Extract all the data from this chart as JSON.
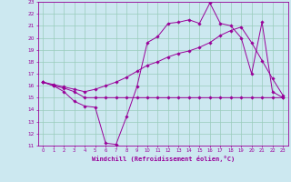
{
  "title": "",
  "xlabel": "Windchill (Refroidissement éolien,°C)",
  "bg_color": "#cce8f0",
  "grid_color": "#99ccbb",
  "line_color": "#990099",
  "xlim": [
    -0.5,
    23.5
  ],
  "ylim": [
    11,
    23
  ],
  "yticks": [
    11,
    12,
    13,
    14,
    15,
    16,
    17,
    18,
    19,
    20,
    21,
    22,
    23
  ],
  "xticks": [
    0,
    1,
    2,
    3,
    4,
    5,
    6,
    7,
    8,
    9,
    10,
    11,
    12,
    13,
    14,
    15,
    16,
    17,
    18,
    19,
    20,
    21,
    22,
    23
  ],
  "line1_x": [
    0,
    1,
    2,
    3,
    4,
    5,
    6,
    7,
    8,
    9,
    10,
    11,
    12,
    13,
    14,
    15,
    16,
    17,
    18,
    19,
    20,
    21,
    22,
    23
  ],
  "line1_y": [
    16.3,
    16.0,
    15.5,
    14.7,
    14.3,
    14.2,
    11.2,
    11.1,
    13.4,
    15.9,
    19.6,
    20.1,
    21.2,
    21.3,
    21.5,
    21.2,
    22.9,
    21.2,
    21.0,
    20.0,
    17.0,
    21.3,
    15.5,
    15.0
  ],
  "line2_x": [
    0,
    1,
    2,
    3,
    4,
    5,
    6,
    7,
    8,
    9,
    10,
    11,
    12,
    13,
    14,
    15,
    16,
    17,
    18,
    19,
    20,
    21,
    22,
    23
  ],
  "line2_y": [
    16.3,
    16.0,
    15.8,
    15.5,
    15.0,
    15.0,
    15.0,
    15.0,
    15.0,
    15.0,
    15.0,
    15.0,
    15.0,
    15.0,
    15.0,
    15.0,
    15.0,
    15.0,
    15.0,
    15.0,
    15.0,
    15.0,
    15.0,
    15.0
  ],
  "line3_x": [
    0,
    1,
    2,
    3,
    4,
    5,
    6,
    7,
    8,
    9,
    10,
    11,
    12,
    13,
    14,
    15,
    16,
    17,
    18,
    19,
    20,
    21,
    22,
    23
  ],
  "line3_y": [
    16.3,
    16.1,
    15.9,
    15.7,
    15.5,
    15.7,
    16.0,
    16.3,
    16.7,
    17.2,
    17.7,
    18.0,
    18.4,
    18.7,
    18.9,
    19.2,
    19.6,
    20.2,
    20.6,
    20.9,
    19.6,
    18.1,
    16.6,
    15.2
  ]
}
